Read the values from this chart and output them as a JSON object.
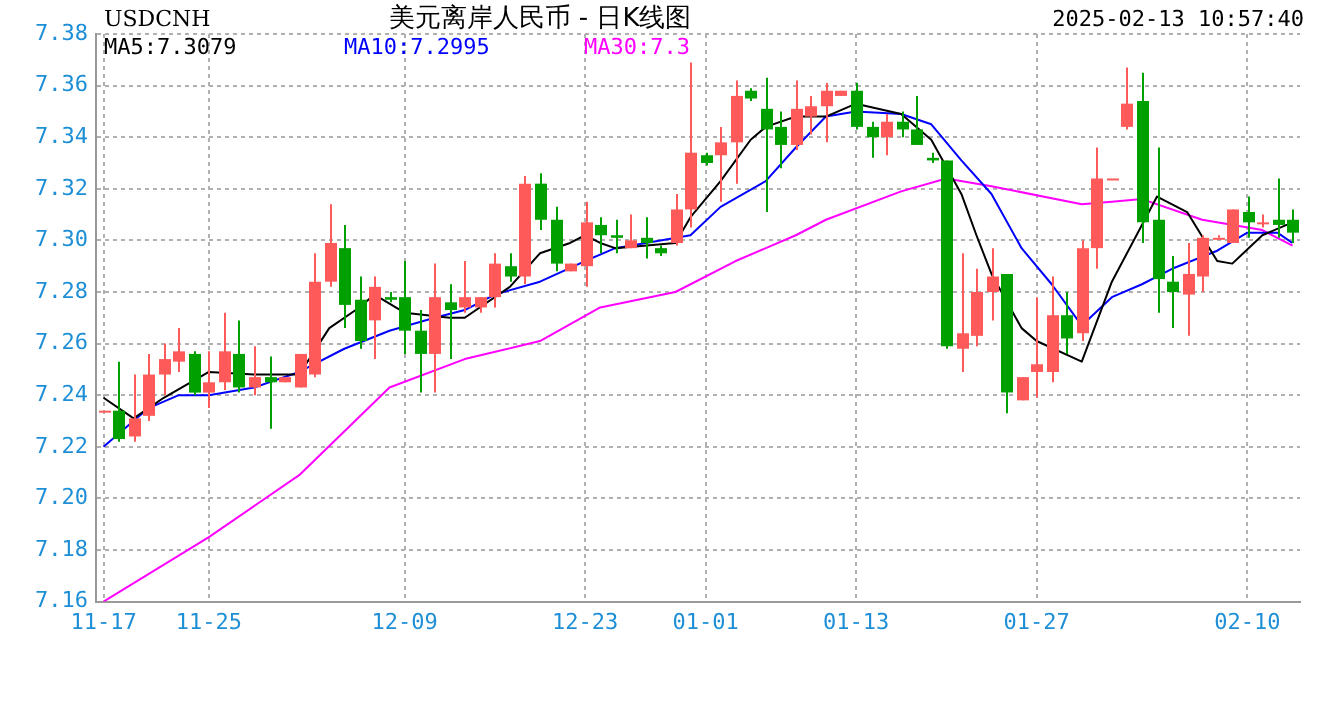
{
  "chart_data": {
    "type": "candlestick",
    "title": "美元离岸人民币 - 日K线图",
    "annotations": [
      "USDCNH",
      "2025-02-13 10:57:40"
    ],
    "categories": [
      "11-17",
      null,
      null,
      null,
      null,
      null,
      null,
      "11-25",
      null,
      null,
      null,
      null,
      null,
      null,
      null,
      null,
      null,
      null,
      null,
      null,
      "12-09",
      null,
      null,
      null,
      null,
      null,
      null,
      null,
      null,
      null,
      null,
      null,
      "12-23",
      null,
      null,
      null,
      null,
      null,
      null,
      null,
      "01-01",
      null,
      null,
      null,
      null,
      null,
      null,
      null,
      null,
      null,
      "01-13",
      null,
      null,
      null,
      null,
      null,
      null,
      null,
      null,
      null,
      null,
      null,
      "01-27",
      null,
      null,
      null,
      null,
      null,
      null,
      null,
      null,
      null,
      null,
      null,
      null,
      null,
      "02-10",
      null,
      null,
      null
    ],
    "ohlc": [
      [
        7.234,
        7.234,
        7.234,
        7.234
      ],
      [
        7.234,
        7.253,
        7.222,
        7.223
      ],
      [
        7.224,
        7.248,
        7.222,
        7.231
      ],
      [
        7.232,
        7.256,
        7.23,
        7.248
      ],
      [
        7.248,
        7.26,
        7.24,
        7.254
      ],
      [
        7.253,
        7.266,
        7.249,
        7.257
      ],
      [
        7.256,
        7.257,
        7.24,
        7.241
      ],
      [
        7.241,
        7.257,
        7.235,
        7.245
      ],
      [
        7.245,
        7.272,
        7.242,
        7.257
      ],
      [
        7.256,
        7.269,
        7.241,
        7.243
      ],
      [
        7.243,
        7.259,
        7.24,
        7.247
      ],
      [
        7.247,
        7.255,
        7.227,
        7.245
      ],
      [
        7.245,
        7.247,
        7.245,
        7.247
      ],
      [
        7.243,
        7.256,
        7.243,
        7.256
      ],
      [
        7.248,
        7.295,
        7.247,
        7.284
      ],
      [
        7.284,
        7.314,
        7.282,
        7.299
      ],
      [
        7.297,
        7.306,
        7.266,
        7.275
      ],
      [
        7.277,
        7.286,
        7.258,
        7.261
      ],
      [
        7.269,
        7.286,
        7.254,
        7.282
      ],
      [
        7.278,
        7.28,
        7.276,
        7.277
      ],
      [
        7.278,
        7.292,
        7.256,
        7.265
      ],
      [
        7.265,
        7.273,
        7.241,
        7.256
      ],
      [
        7.256,
        7.291,
        7.241,
        7.278
      ],
      [
        7.276,
        7.283,
        7.254,
        7.273
      ],
      [
        7.274,
        7.292,
        7.272,
        7.278
      ],
      [
        7.274,
        7.278,
        7.272,
        7.278
      ],
      [
        7.278,
        7.295,
        7.274,
        7.291
      ],
      [
        7.29,
        7.295,
        7.284,
        7.286
      ],
      [
        7.286,
        7.325,
        7.283,
        7.322
      ],
      [
        7.322,
        7.326,
        7.304,
        7.308
      ],
      [
        7.308,
        7.313,
        7.288,
        7.291
      ],
      [
        7.288,
        7.291,
        7.288,
        7.291
      ],
      [
        7.29,
        7.315,
        7.282,
        7.307
      ],
      [
        7.306,
        7.309,
        7.295,
        7.302
      ],
      [
        7.302,
        7.308,
        7.295,
        7.301
      ],
      [
        7.297,
        7.31,
        7.297,
        7.3
      ],
      [
        7.301,
        7.309,
        7.293,
        7.299
      ],
      [
        7.297,
        7.298,
        7.294,
        7.295
      ],
      [
        7.299,
        7.318,
        7.298,
        7.312
      ],
      [
        7.312,
        7.369,
        7.305,
        7.334
      ],
      [
        7.333,
        7.334,
        7.329,
        7.33
      ],
      [
        7.333,
        7.344,
        7.315,
        7.338
      ],
      [
        7.338,
        7.362,
        7.322,
        7.356
      ],
      [
        7.358,
        7.359,
        7.354,
        7.355
      ],
      [
        7.351,
        7.363,
        7.311,
        7.343
      ],
      [
        7.344,
        7.35,
        7.328,
        7.337
      ],
      [
        7.337,
        7.362,
        7.335,
        7.351
      ],
      [
        7.348,
        7.356,
        7.341,
        7.352
      ],
      [
        7.352,
        7.361,
        7.338,
        7.358
      ],
      [
        7.356,
        7.358,
        7.356,
        7.358
      ],
      [
        7.358,
        7.361,
        7.343,
        7.344
      ],
      [
        7.344,
        7.346,
        7.332,
        7.34
      ],
      [
        7.34,
        7.349,
        7.333,
        7.346
      ],
      [
        7.346,
        7.35,
        7.34,
        7.343
      ],
      [
        7.343,
        7.356,
        7.337,
        7.337
      ],
      [
        7.332,
        7.334,
        7.33,
        7.331
      ],
      [
        7.331,
        7.331,
        7.258,
        7.259
      ],
      [
        7.258,
        7.295,
        7.249,
        7.264
      ],
      [
        7.263,
        7.289,
        7.259,
        7.28
      ],
      [
        7.28,
        7.297,
        7.269,
        7.286
      ],
      [
        7.287,
        7.287,
        7.233,
        7.241
      ],
      [
        7.238,
        7.247,
        7.238,
        7.247
      ],
      [
        7.249,
        7.278,
        7.239,
        7.252
      ],
      [
        7.249,
        7.286,
        7.245,
        7.271
      ],
      [
        7.271,
        7.28,
        7.256,
        7.262
      ],
      [
        7.264,
        7.3,
        7.261,
        7.297
      ],
      [
        7.297,
        7.336,
        7.289,
        7.324
      ],
      [
        7.324,
        7.324,
        7.324,
        7.324
      ],
      [
        7.344,
        7.367,
        7.343,
        7.353
      ],
      [
        7.354,
        7.365,
        7.299,
        7.307
      ],
      [
        7.308,
        7.336,
        7.272,
        7.285
      ],
      [
        7.284,
        7.294,
        7.266,
        7.28
      ],
      [
        7.279,
        7.299,
        7.263,
        7.287
      ],
      [
        7.286,
        7.302,
        7.28,
        7.301
      ],
      [
        7.301,
        7.302,
        7.301,
        7.301
      ],
      [
        7.299,
        7.312,
        7.299,
        7.312
      ],
      [
        7.311,
        7.317,
        7.301,
        7.307
      ],
      [
        7.307,
        7.31,
        7.305,
        7.307
      ],
      [
        7.308,
        7.324,
        7.301,
        7.306
      ],
      [
        7.308,
        7.312,
        7.299,
        7.303
      ]
    ],
    "colors": [
      "#ff5a5a",
      "#00a000",
      "#ff5a5a",
      "#ff5a5a",
      "#ff5a5a",
      "#ff5a5a",
      "#00a000",
      "#ff5a5a",
      "#ff5a5a",
      "#00a000",
      "#ff5a5a",
      "#00a000",
      "#ff5a5a",
      "#ff5a5a",
      "#ff5a5a",
      "#ff5a5a",
      "#00a000",
      "#00a000",
      "#ff5a5a",
      "#00a000",
      "#00a000",
      "#00a000",
      "#ff5a5a",
      "#00a000",
      "#ff5a5a",
      "#ff5a5a",
      "#ff5a5a",
      "#00a000",
      "#ff5a5a",
      "#00a000",
      "#00a000",
      "#ff5a5a",
      "#ff5a5a",
      "#00a000",
      "#00a000",
      "#ff5a5a",
      "#00a000",
      "#00a000",
      "#ff5a5a",
      "#ff5a5a",
      "#00a000",
      "#ff5a5a",
      "#ff5a5a",
      "#00a000",
      "#00a000",
      "#00a000",
      "#ff5a5a",
      "#ff5a5a",
      "#ff5a5a",
      "#ff5a5a",
      "#00a000",
      "#00a000",
      "#ff5a5a",
      "#00a000",
      "#00a000",
      "#00a000",
      "#00a000",
      "#ff5a5a",
      "#ff5a5a",
      "#ff5a5a",
      "#00a000",
      "#ff5a5a",
      "#ff5a5a",
      "#ff5a5a",
      "#00a000",
      "#ff5a5a",
      "#ff5a5a",
      "#ff5a5a",
      "#ff5a5a",
      "#00a000",
      "#00a000",
      "#00a000",
      "#ff5a5a",
      "#ff5a5a",
      "#ff5a5a",
      "#ff5a5a",
      "#00a000",
      "#ff5a5a",
      "#00a000",
      "#00a000"
    ],
    "series": [
      {
        "name": "MA5:7.3079",
        "type": "line",
        "color": "#000000",
        "values": [
          7.239,
          null,
          7.231,
          null,
          7.239,
          null,
          null,
          7.249,
          null,
          null,
          7.248,
          null,
          null,
          7.248,
          null,
          7.266,
          null,
          7.274,
          7.279,
          null,
          7.272,
          null,
          null,
          7.27,
          7.27,
          null,
          null,
          7.282,
          null,
          7.295,
          null,
          7.299,
          7.302,
          7.299,
          7.297,
          null,
          null,
          null,
          7.299,
          7.309,
          null,
          7.323,
          null,
          7.339,
          7.344,
          null,
          7.348,
          null,
          7.348,
          null,
          7.353,
          null,
          null,
          7.349,
          null,
          7.339,
          null,
          7.318,
          7.302,
          7.287,
          null,
          7.266,
          7.261,
          null,
          null,
          7.253,
          null,
          7.284,
          null,
          null,
          7.317,
          null,
          7.311,
          null,
          7.292,
          7.291,
          null,
          7.302,
          null,
          7.307
        ]
      },
      {
        "name": "MA10:7.2995",
        "type": "line",
        "color": "#0000ff",
        "values": [
          7.22,
          null,
          null,
          7.235,
          null,
          7.24,
          null,
          7.24,
          null,
          null,
          7.243,
          null,
          null,
          7.249,
          null,
          null,
          7.258,
          null,
          null,
          7.265,
          null,
          null,
          7.27,
          null,
          7.273,
          null,
          7.279,
          null,
          null,
          7.284,
          null,
          null,
          7.292,
          null,
          7.297,
          null,
          null,
          7.3,
          null,
          7.302,
          null,
          7.313,
          null,
          null,
          7.323,
          null,
          7.336,
          null,
          7.348,
          null,
          7.35,
          null,
          null,
          7.349,
          null,
          7.345,
          null,
          7.331,
          null,
          7.318,
          null,
          7.297,
          null,
          7.283,
          null,
          7.267,
          null,
          7.278,
          null,
          7.283,
          null,
          7.289,
          null,
          null,
          7.296,
          null,
          7.303,
          null,
          7.303,
          7.299
        ]
      },
      {
        "name": "MA30:7.3",
        "type": "line",
        "color": "#ff00ff",
        "values": [
          7.16,
          null,
          null,
          null,
          null,
          null,
          null,
          7.185,
          null,
          null,
          null,
          null,
          null,
          7.209,
          null,
          null,
          null,
          null,
          null,
          7.243,
          null,
          null,
          null,
          null,
          7.254,
          null,
          null,
          null,
          null,
          7.261,
          null,
          null,
          null,
          7.274,
          null,
          null,
          null,
          null,
          7.28,
          null,
          null,
          null,
          7.292,
          null,
          null,
          null,
          7.302,
          null,
          7.308,
          null,
          null,
          null,
          null,
          7.319,
          null,
          null,
          7.324,
          null,
          null,
          7.321,
          null,
          null,
          null,
          null,
          null,
          7.314,
          null,
          7.315,
          null,
          7.316,
          null,
          null,
          null,
          7.308,
          null,
          null,
          null,
          7.304,
          null,
          7.298
        ]
      }
    ],
    "ylim": [
      7.16,
      7.38
    ],
    "yticks": [
      7.16,
      7.18,
      {
        "value": 7.2,
        "label": "7.20"
      },
      7.22,
      7.24,
      7.26,
      7.28,
      {
        "value": 7.3,
        "label": "7.30"
      },
      7.32,
      7.34,
      7.36,
      7.38
    ],
    "grid": true,
    "legend": "top left"
  }
}
